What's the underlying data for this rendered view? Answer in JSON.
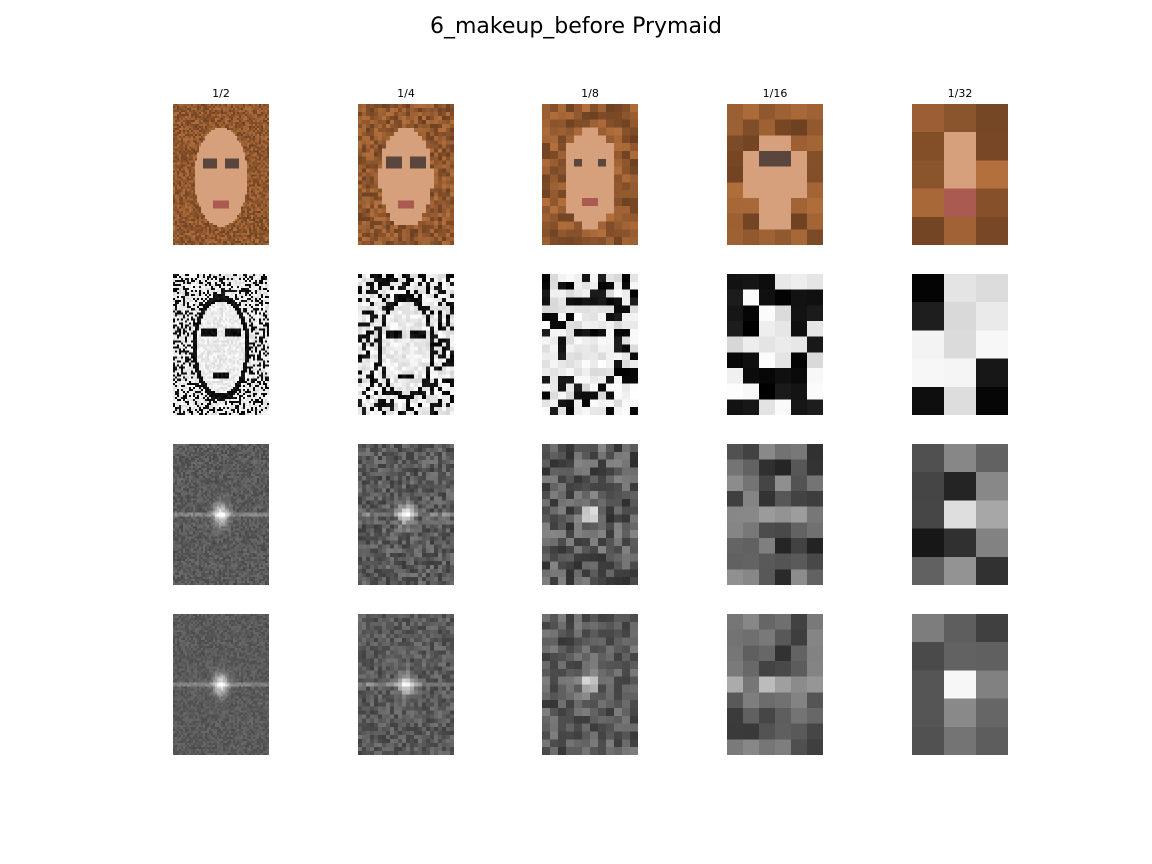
{
  "figure": {
    "title": "6_makeup_before Prymaid"
  },
  "columns": [
    {
      "label": "1/2",
      "scale": 2,
      "grid": [
        48,
        70
      ]
    },
    {
      "label": "1/4",
      "scale": 4,
      "grid": [
        24,
        35
      ]
    },
    {
      "label": "1/8",
      "scale": 8,
      "grid": [
        12,
        18
      ]
    },
    {
      "label": "1/16",
      "scale": 16,
      "grid": [
        6,
        9
      ]
    },
    {
      "label": "1/32",
      "scale": 32,
      "grid": [
        3,
        5
      ]
    }
  ],
  "rows": [
    {
      "kind": "color-downsample"
    },
    {
      "kind": "edge-map"
    },
    {
      "kind": "fft-magnitude"
    },
    {
      "kind": "fft-magnitude-alt"
    }
  ],
  "colors": {
    "background": "#ffffff",
    "hair_dark": "#3b200f",
    "hair_light": "#b3733f",
    "skin": "#d9a07c",
    "fft_gray": "#666666"
  }
}
